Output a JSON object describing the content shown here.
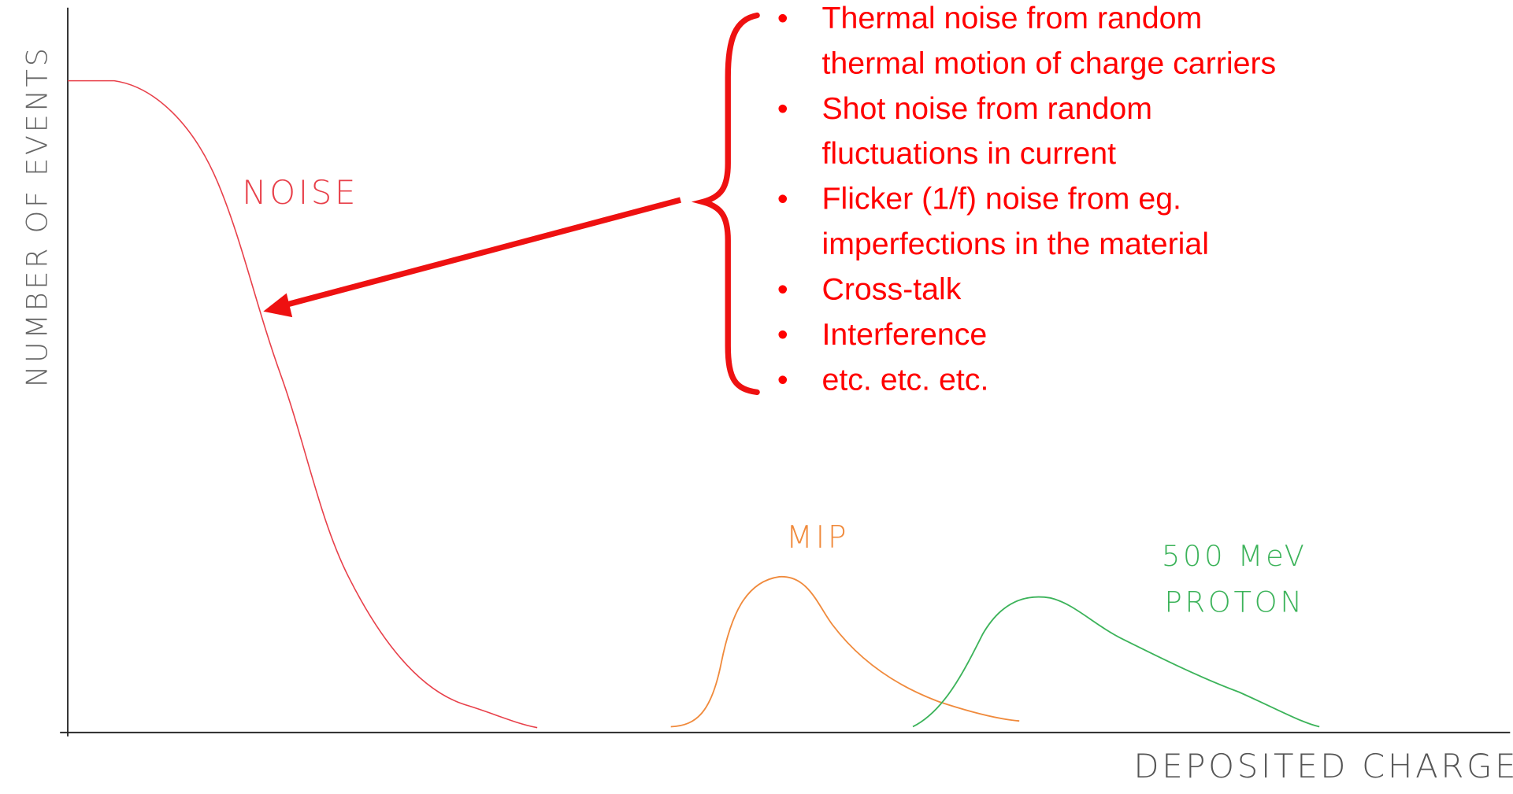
{
  "axes": {
    "y_label": "NUMBER OF EVENTS",
    "x_label": "DEPOSITED CHARGE"
  },
  "curve_labels": {
    "noise": "NOISE",
    "mip": "MIP",
    "proton": [
      "500 MeV",
      "PROTON"
    ]
  },
  "noise_sources": [
    {
      "lines": [
        "Thermal noise from random",
        "thermal motion of charge carriers"
      ]
    },
    {
      "lines": [
        "Shot noise from random",
        "fluctuations in current"
      ]
    },
    {
      "lines": [
        "Flicker (1/f) noise from eg.",
        "imperfections in the material"
      ]
    },
    {
      "lines": [
        "Cross-talk"
      ]
    },
    {
      "lines": [
        "Interference"
      ]
    },
    {
      "lines": [
        "etc. etc. etc."
      ]
    }
  ]
}
